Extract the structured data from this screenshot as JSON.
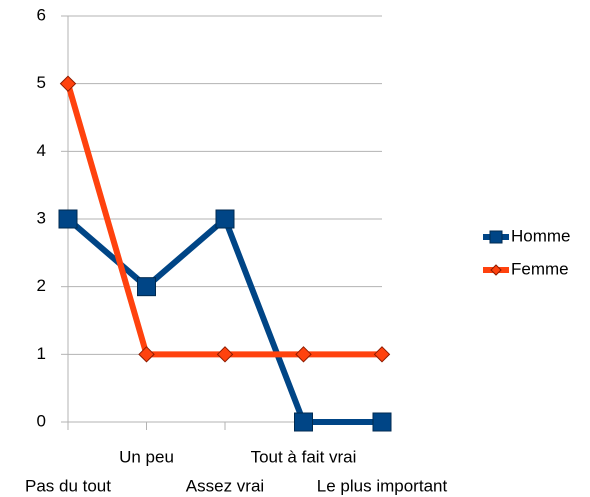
{
  "chart_data": {
    "type": "line",
    "categories": [
      "Pas du tout",
      "Un peu",
      "Assez vrai",
      "Tout à fait vrai",
      "Le plus important"
    ],
    "series": [
      {
        "name": "Homme",
        "color": "#004586",
        "marker": "square",
        "values": [
          3,
          2,
          3,
          0,
          0
        ]
      },
      {
        "name": "Femme",
        "color": "#ff420e",
        "marker": "diamond",
        "values": [
          5,
          1,
          1,
          1,
          1
        ]
      }
    ],
    "ylim": [
      0,
      6
    ],
    "yticks": [
      0,
      1,
      2,
      3,
      4,
      5,
      6
    ],
    "grid": true,
    "legend": "right"
  }
}
